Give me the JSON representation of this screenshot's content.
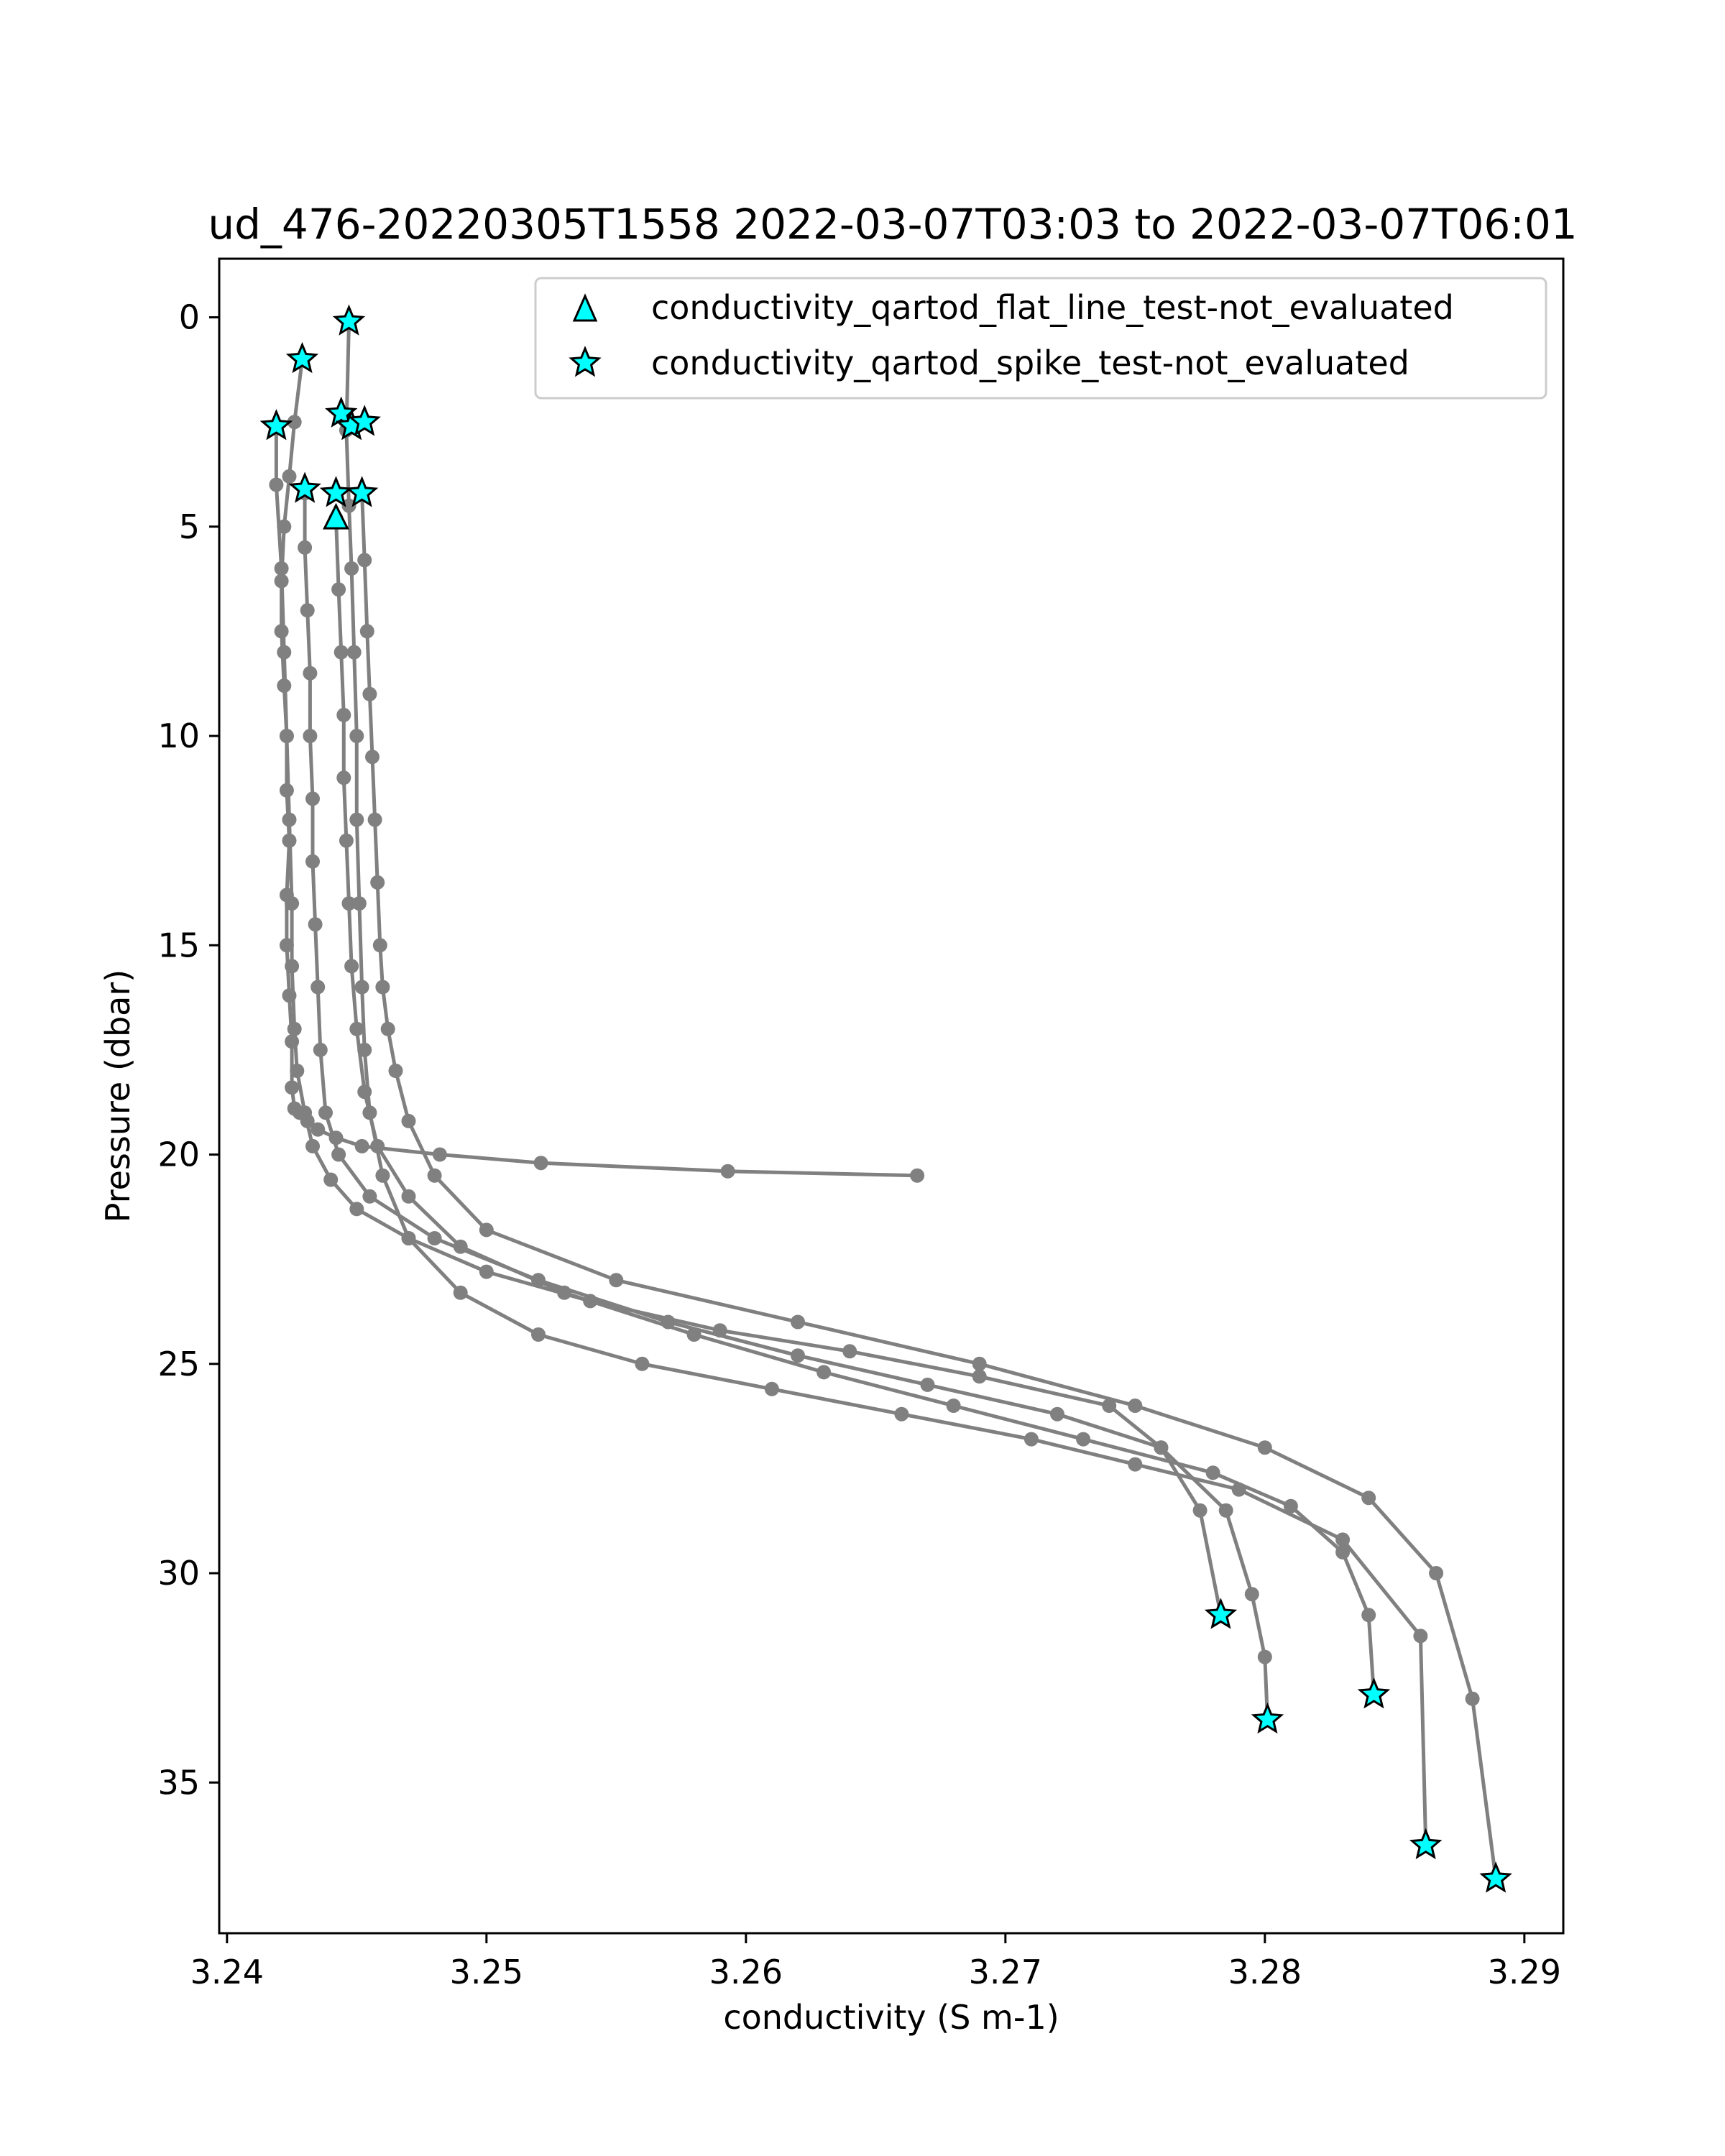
{
  "chart_data": {
    "type": "scatter",
    "title": "ud_476-20220305T1558 2022-03-07T03:03 to 2022-03-07T06:01",
    "xlabel": "conductivity (S m-1)",
    "ylabel": "Pressure (dbar)",
    "xlim": [
      3.2397,
      3.2915
    ],
    "ylim": [
      38.6,
      -1.4
    ],
    "y_inverted": true,
    "grid": false,
    "xticks": [
      {
        "value": 3.24,
        "label": "3.24"
      },
      {
        "value": 3.25,
        "label": "3.25"
      },
      {
        "value": 3.26,
        "label": "3.26"
      },
      {
        "value": 3.27,
        "label": "3.27"
      },
      {
        "value": 3.28,
        "label": "3.28"
      },
      {
        "value": 3.29,
        "label": "3.29"
      }
    ],
    "yticks": [
      {
        "value": 0,
        "label": "0"
      },
      {
        "value": 5,
        "label": "5"
      },
      {
        "value": 10,
        "label": "10"
      },
      {
        "value": 15,
        "label": "15"
      },
      {
        "value": 20,
        "label": "20"
      },
      {
        "value": 25,
        "label": "25"
      },
      {
        "value": 30,
        "label": "30"
      },
      {
        "value": 35,
        "label": "35"
      }
    ],
    "legend": {
      "placement": "upper right",
      "entries": [
        {
          "label": "conductivity_qartod_flat_line_test-not_evaluated",
          "marker": "triangle"
        },
        {
          "label": "conductivity_qartod_spike_test-not_evaluated",
          "marker": "star"
        }
      ]
    },
    "colors": {
      "line": "#808080",
      "flag_fill": "#00ffff",
      "flag_edge": "#000000"
    },
    "profiles": [
      {
        "x": [
          3.2429,
          3.2426,
          3.2424,
          3.2422,
          3.2421,
          3.2421,
          3.2422,
          3.2423,
          3.2423,
          3.2424,
          3.2423,
          3.2423,
          3.2424,
          3.2425,
          3.2425,
          3.2426,
          3.2428,
          3.2431,
          3.2435,
          3.2442,
          3.2452,
          3.2482,
          3.2521,
          3.2593,
          3.2666
        ],
        "y": [
          1.0,
          2.5,
          3.8,
          5.0,
          6.3,
          7.5,
          8.8,
          10.0,
          11.3,
          12.5,
          13.8,
          15.0,
          16.2,
          17.3,
          18.4,
          18.9,
          19.0,
          19.2,
          19.4,
          19.6,
          19.8,
          20.0,
          20.2,
          20.4,
          20.5
        ]
      },
      {
        "x": [
          3.2419,
          3.2419,
          3.2421,
          3.2422,
          3.2423,
          3.2424,
          3.2425,
          3.2425,
          3.2426,
          3.2427,
          3.243,
          3.2433,
          3.244,
          3.245,
          3.247,
          3.25,
          3.254,
          3.259,
          3.264,
          3.269,
          3.274,
          3.276,
          3.2775,
          3.2783
        ],
        "y": [
          2.6,
          4.0,
          6.0,
          8.0,
          10.0,
          12.0,
          14.0,
          15.5,
          17.0,
          18.0,
          19.0,
          19.8,
          20.6,
          21.3,
          22.0,
          22.8,
          23.5,
          24.2,
          24.7,
          25.3,
          26.0,
          27.0,
          28.5,
          31.0
        ]
      },
      {
        "x": [
          3.243,
          3.243,
          3.2431,
          3.2432,
          3.2432,
          3.2433,
          3.2433,
          3.2434,
          3.2435,
          3.2436,
          3.2438,
          3.2443,
          3.2455,
          3.248,
          3.252,
          3.257,
          3.262,
          3.267,
          3.272,
          3.276,
          3.2785,
          3.2795,
          3.28,
          3.2801
        ],
        "y": [
          4.2,
          5.5,
          7.0,
          8.5,
          10.0,
          11.5,
          13.0,
          14.5,
          16.0,
          17.5,
          19.0,
          20.0,
          21.0,
          22.0,
          23.0,
          24.0,
          24.8,
          25.5,
          26.2,
          27.0,
          28.5,
          30.5,
          32.0,
          33.5
        ]
      },
      {
        "x": [
          3.2442,
          3.2443,
          3.2444,
          3.2445,
          3.2445,
          3.2446,
          3.2447,
          3.2448,
          3.245,
          3.2453,
          3.2458,
          3.247,
          3.249,
          3.253,
          3.258,
          3.263,
          3.268,
          3.273,
          3.278,
          3.281,
          3.283,
          3.284,
          3.2842
        ],
        "y": [
          4.8,
          6.5,
          8.0,
          9.5,
          11.0,
          12.5,
          14.0,
          15.5,
          17.0,
          18.5,
          19.8,
          21.0,
          22.2,
          23.3,
          24.3,
          25.2,
          26.0,
          26.8,
          27.6,
          28.4,
          29.5,
          31.0,
          32.9
        ]
      },
      {
        "x": [
          3.2447,
          3.2446,
          3.2447,
          3.2448,
          3.2449,
          3.245,
          3.245,
          3.2451,
          3.2452,
          3.2453,
          3.2455,
          3.246,
          3.247,
          3.249,
          3.252,
          3.256,
          3.261,
          3.266,
          3.271,
          3.275,
          3.279,
          3.283,
          3.286,
          3.2862
        ],
        "y": [
          0.1,
          2.7,
          4.5,
          6.0,
          8.0,
          10.0,
          12.0,
          14.0,
          16.0,
          17.5,
          19.0,
          20.5,
          22.0,
          23.3,
          24.3,
          25.0,
          25.6,
          26.2,
          26.8,
          27.4,
          28.0,
          29.2,
          31.5,
          36.5
        ]
      },
      {
        "x": [
          3.2452,
          3.2453,
          3.2454,
          3.2455,
          3.2456,
          3.2457,
          3.2458,
          3.2459,
          3.246,
          3.2462,
          3.2465,
          3.247,
          3.248,
          3.25,
          3.255,
          3.262,
          3.269,
          3.275,
          3.28,
          3.284,
          3.2866,
          3.288,
          3.2889
        ],
        "y": [
          4.2,
          5.8,
          7.5,
          9.0,
          10.5,
          12.0,
          13.5,
          15.0,
          16.0,
          17.0,
          18.0,
          19.2,
          20.5,
          21.8,
          23.0,
          24.0,
          25.0,
          26.0,
          27.0,
          28.2,
          30.0,
          33.0,
          37.3
        ]
      }
    ],
    "spike_flags": {
      "x": [
        3.2447,
        3.2429,
        3.2419,
        3.2444,
        3.2448,
        3.2453,
        3.243,
        3.2442,
        3.2452,
        3.2783,
        3.2801,
        3.2842,
        3.2862,
        3.2889
      ],
      "y": [
        0.1,
        1.0,
        2.6,
        2.3,
        2.6,
        2.5,
        4.1,
        4.2,
        4.2,
        31.0,
        33.5,
        32.9,
        36.5,
        37.3
      ]
    },
    "flat_line_flags": {
      "x": [
        3.2442
      ],
      "y": [
        4.8
      ]
    }
  }
}
